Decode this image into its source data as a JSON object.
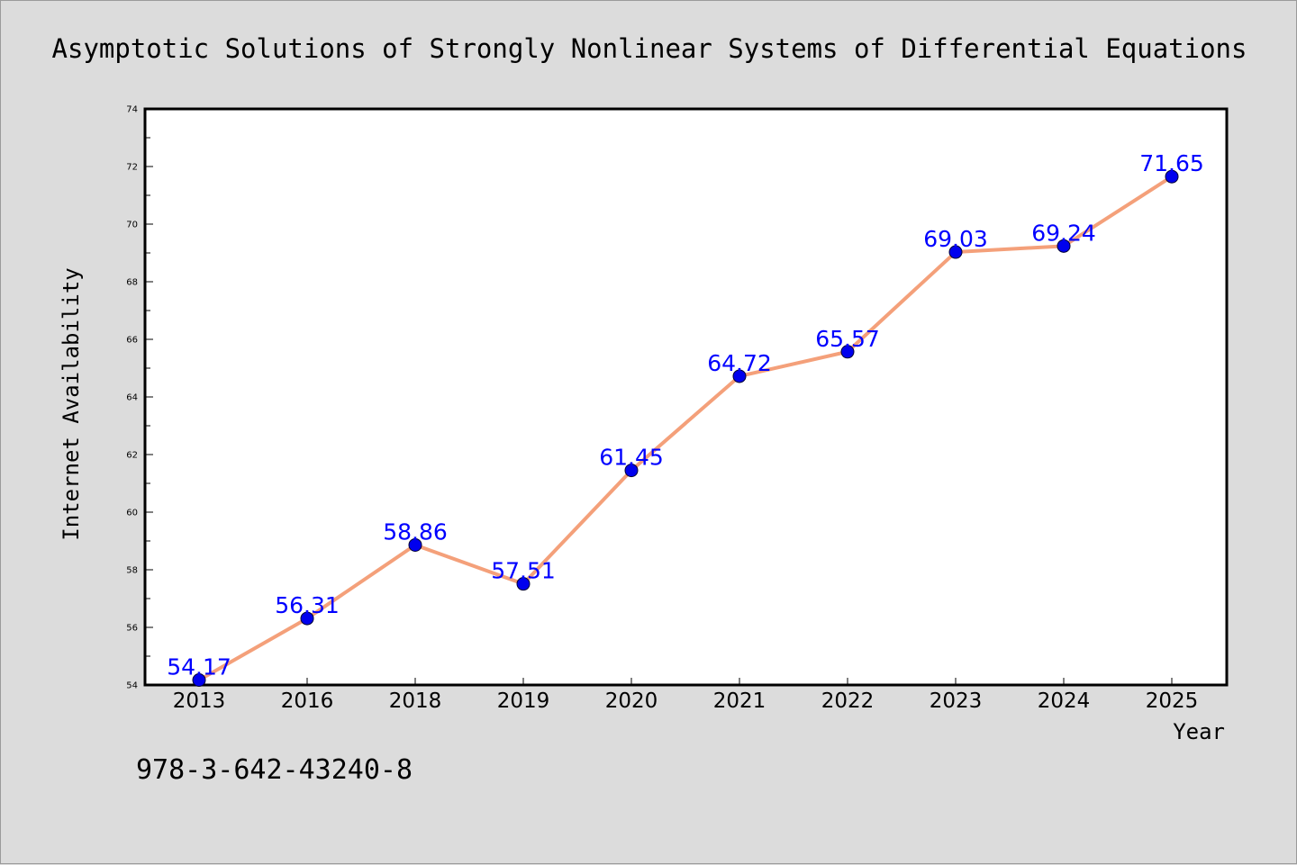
{
  "chart_data": {
    "type": "line",
    "title": "Asymptotic Solutions of Strongly Nonlinear Systems of Differential Equations",
    "xlabel": "Year",
    "ylabel": "Internet Availability",
    "categories": [
      "2013",
      "2016",
      "2018",
      "2019",
      "2020",
      "2021",
      "2022",
      "2023",
      "2024",
      "2025"
    ],
    "series": [
      {
        "values": [
          54.17,
          56.31,
          58.86,
          57.51,
          61.45,
          64.72,
          65.57,
          69.03,
          69.24,
          71.65
        ]
      }
    ],
    "data_labels": [
      "54.17",
      "56.31",
      "58.86",
      "57.51",
      "61.45",
      "64.72",
      "65.57",
      "69.03",
      "69.24",
      "71.65"
    ],
    "ylim": [
      54,
      74
    ],
    "yticks": [
      54,
      56,
      58,
      60,
      62,
      64,
      66,
      68,
      70,
      72,
      74
    ],
    "grid": false,
    "colors": {
      "background": "#dcdcdc",
      "plot_area": "#ffffff",
      "line": "#f4a07a",
      "marker": "#0000ee",
      "data_label": "#0000ff"
    }
  },
  "annotation": "978-3-642-43240-8"
}
